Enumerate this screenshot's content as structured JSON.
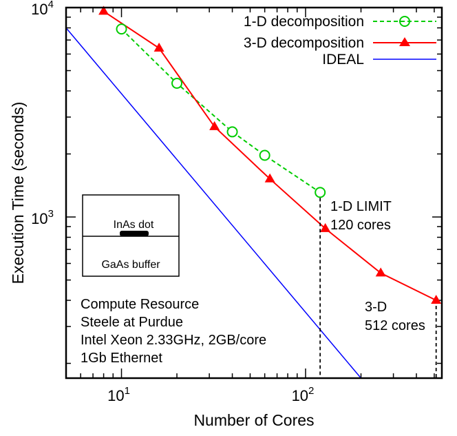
{
  "chart_data": {
    "type": "line",
    "title": "",
    "xlabel": "Number of Cores",
    "ylabel": "Execution Time (seconds)",
    "x_scale": "log",
    "y_scale": "log",
    "xlim": [
      5,
      550
    ],
    "ylim": [
      170,
      10000
    ],
    "x_ticks": [
      {
        "value": 10,
        "base": "10",
        "exp": "1"
      },
      {
        "value": 100,
        "base": "10",
        "exp": "2"
      }
    ],
    "y_ticks": [
      {
        "value": 1000,
        "base": "10",
        "exp": "3"
      },
      {
        "value": 10000,
        "base": "10",
        "exp": "4"
      }
    ],
    "grid": false,
    "legend_position": "top-right",
    "series": [
      {
        "name": "1-D decomposition",
        "color": "#00cc00",
        "line_style": "dashed",
        "marker": "open-circle",
        "x": [
          10,
          20,
          40,
          60,
          120
        ],
        "y": [
          7900,
          4350,
          2550,
          1970,
          1310
        ]
      },
      {
        "name": "3-D decomposition",
        "color": "#ff0000",
        "line_style": "solid",
        "marker": "filled-triangle",
        "x": [
          8,
          16,
          32,
          64,
          128,
          256,
          512
        ],
        "y": [
          9600,
          6400,
          2700,
          1520,
          880,
          540,
          400
        ]
      },
      {
        "name": "IDEAL",
        "color": "#0000ff",
        "line_style": "solid",
        "marker": "none",
        "x": [
          5,
          200
        ],
        "y": [
          8000,
          170
        ]
      }
    ],
    "annotations": {
      "limit_1d": {
        "line1": "1-D LIMIT",
        "line2": "120 cores",
        "x": 120
      },
      "limit_3d": {
        "line1": "3-D",
        "line2": "512 cores",
        "x": 512
      },
      "resource": [
        "Compute Resource",
        "Steele at Purdue",
        "Intel Xeon 2.33GHz, 2GB/core",
        "1Gb Ethernet"
      ],
      "inset": {
        "top_label": "InAs dot",
        "bottom_label": "GaAs buffer"
      }
    }
  }
}
